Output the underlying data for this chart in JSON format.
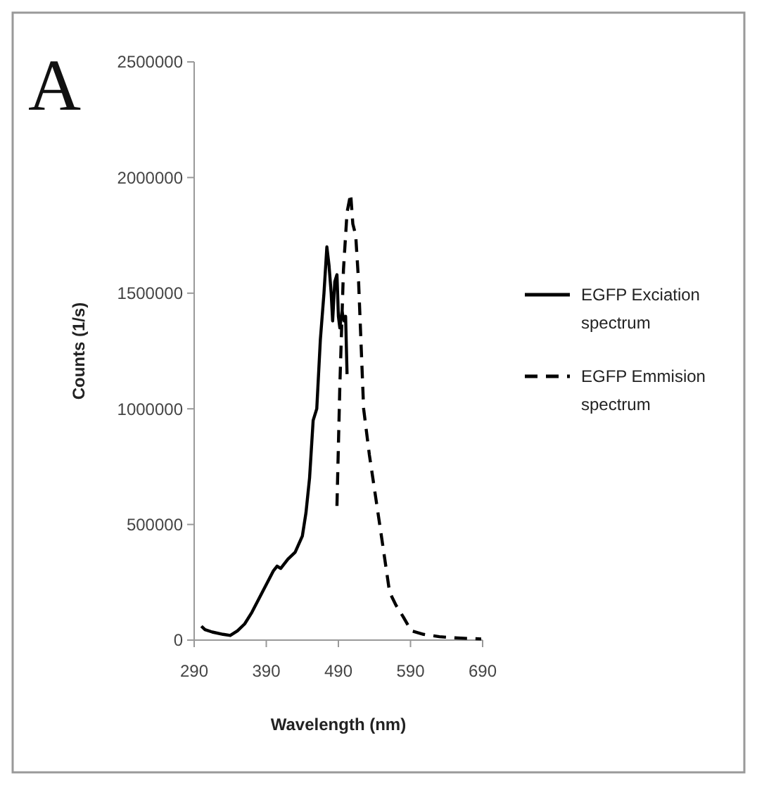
{
  "chart_data": {
    "type": "line",
    "xlabel": "Wavelength (nm)",
    "ylabel": "Counts (1/s)",
    "annotations": [
      "A"
    ],
    "xlim": [
      290,
      690
    ],
    "xticks": [
      290,
      390,
      490,
      590,
      690
    ],
    "ylim": [
      0,
      2500000
    ],
    "yticks": [
      0,
      500000,
      1000000,
      1500000,
      2000000,
      2500000
    ],
    "grid": false,
    "legend": "right",
    "marker": "none",
    "series": [
      {
        "name": "EGFP Exciation spectrum",
        "color": "#000000",
        "line_style": "solid",
        "x": [
          300,
          305,
          315,
          330,
          340,
          350,
          360,
          370,
          380,
          390,
          400,
          405,
          410,
          420,
          430,
          440,
          445,
          450,
          455,
          460,
          465,
          470,
          474,
          477,
          480,
          482,
          485,
          488,
          490,
          492,
          495,
          498,
          500,
          502
        ],
        "values": [
          60000,
          45000,
          35000,
          25000,
          20000,
          40000,
          70000,
          120000,
          180000,
          240000,
          300000,
          320000,
          310000,
          350000,
          380000,
          450000,
          550000,
          700000,
          950000,
          1000000,
          1300000,
          1500000,
          1700000,
          1620000,
          1500000,
          1380000,
          1550000,
          1580000,
          1400000,
          1350000,
          1420000,
          1380000,
          1400000,
          1150000
        ]
      },
      {
        "name": "EGFP Emmision spectrum",
        "color": "#000000",
        "line_style": "dashed",
        "x": [
          488,
          492,
          497,
          502,
          507,
          510,
          514,
          518,
          525,
          533,
          543,
          552,
          561,
          570,
          580,
          591,
          608,
          630,
          650,
          670,
          688
        ],
        "values": [
          580000,
          1100000,
          1600000,
          1850000,
          1930000,
          1800000,
          1750000,
          1550000,
          1000000,
          800000,
          590000,
          400000,
          207000,
          150000,
          100000,
          40000,
          25000,
          15000,
          10000,
          7000,
          5000
        ]
      }
    ]
  }
}
